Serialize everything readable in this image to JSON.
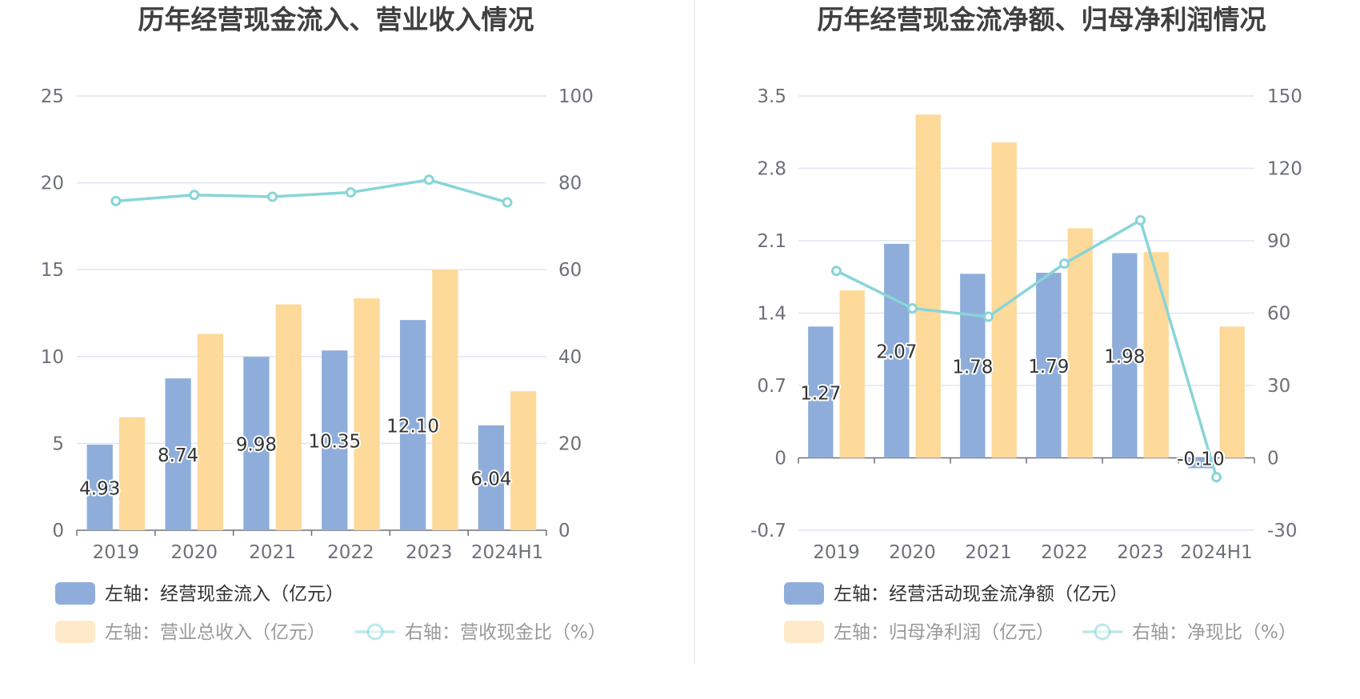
{
  "colors": {
    "blue": "#8eadda",
    "orange": "#fdd99a",
    "teal": "#88d5d8",
    "grid": "#e0e6f1",
    "axis": "#6e7079",
    "title": "#404040",
    "legend_active": "#333333",
    "legend_inactive": "#999999"
  },
  "chart_data": [
    {
      "type": "bar",
      "title": "历年经营现金流入、营业收入情况",
      "categories": [
        "2019",
        "2020",
        "2021",
        "2022",
        "2023",
        "2024H1"
      ],
      "left_axis": {
        "ticks": [
          "0",
          "5",
          "10",
          "15",
          "20",
          "25"
        ],
        "ylim": [
          0,
          25
        ]
      },
      "right_axis": {
        "ticks": [
          "0",
          "20",
          "40",
          "60",
          "80",
          "100"
        ],
        "ylim": [
          0,
          100
        ]
      },
      "series": [
        {
          "name": "左轴：经营现金流入（亿元）",
          "kind": "bar",
          "axis": "left",
          "color": "#8eadda",
          "values": [
            4.93,
            8.74,
            9.98,
            10.35,
            12.1,
            6.04
          ],
          "labels": [
            "4.93",
            "8.74",
            "9.98",
            "10.35",
            "12.10",
            "6.04"
          ]
        },
        {
          "name": "左轴：营业总收入（亿元）",
          "kind": "bar",
          "axis": "left",
          "color": "#fdd99a",
          "values": [
            6.5,
            11.3,
            13.0,
            13.35,
            15.0,
            8.0
          ]
        },
        {
          "name": "右轴：营收现金比（%）",
          "kind": "line",
          "axis": "right",
          "color": "#88d5d8",
          "values": [
            75.8,
            77.2,
            76.8,
            77.8,
            80.7,
            75.5
          ]
        }
      ]
    },
    {
      "type": "bar",
      "title": "历年经营现金流净额、归母净利润情况",
      "categories": [
        "2019",
        "2020",
        "2021",
        "2022",
        "2023",
        "2024H1"
      ],
      "left_axis": {
        "ticks": [
          "-0.7",
          "0",
          "0.7",
          "1.4",
          "2.1",
          "2.8",
          "3.5"
        ],
        "ylim": [
          -0.7,
          3.5
        ]
      },
      "right_axis": {
        "ticks": [
          "-30",
          "0",
          "30",
          "60",
          "90",
          "120",
          "150"
        ],
        "ylim": [
          -30,
          150
        ]
      },
      "series": [
        {
          "name": "左轴：经营活动现金流净额（亿元）",
          "kind": "bar",
          "axis": "left",
          "color": "#8eadda",
          "values": [
            1.27,
            2.07,
            1.78,
            1.79,
            1.98,
            -0.1
          ],
          "labels": [
            "1.27",
            "2.07",
            "1.78",
            "1.79",
            "1.98",
            "-0.10"
          ]
        },
        {
          "name": "左轴：归母净利润（亿元）",
          "kind": "bar",
          "axis": "left",
          "color": "#fdd99a",
          "values": [
            1.62,
            3.32,
            3.05,
            2.22,
            1.99,
            1.27
          ]
        },
        {
          "name": "右轴：净现比（%）",
          "kind": "line",
          "axis": "right",
          "color": "#88d5d8",
          "values": [
            77.5,
            62,
            58.5,
            80.5,
            98.5,
            -8
          ]
        }
      ]
    }
  ]
}
